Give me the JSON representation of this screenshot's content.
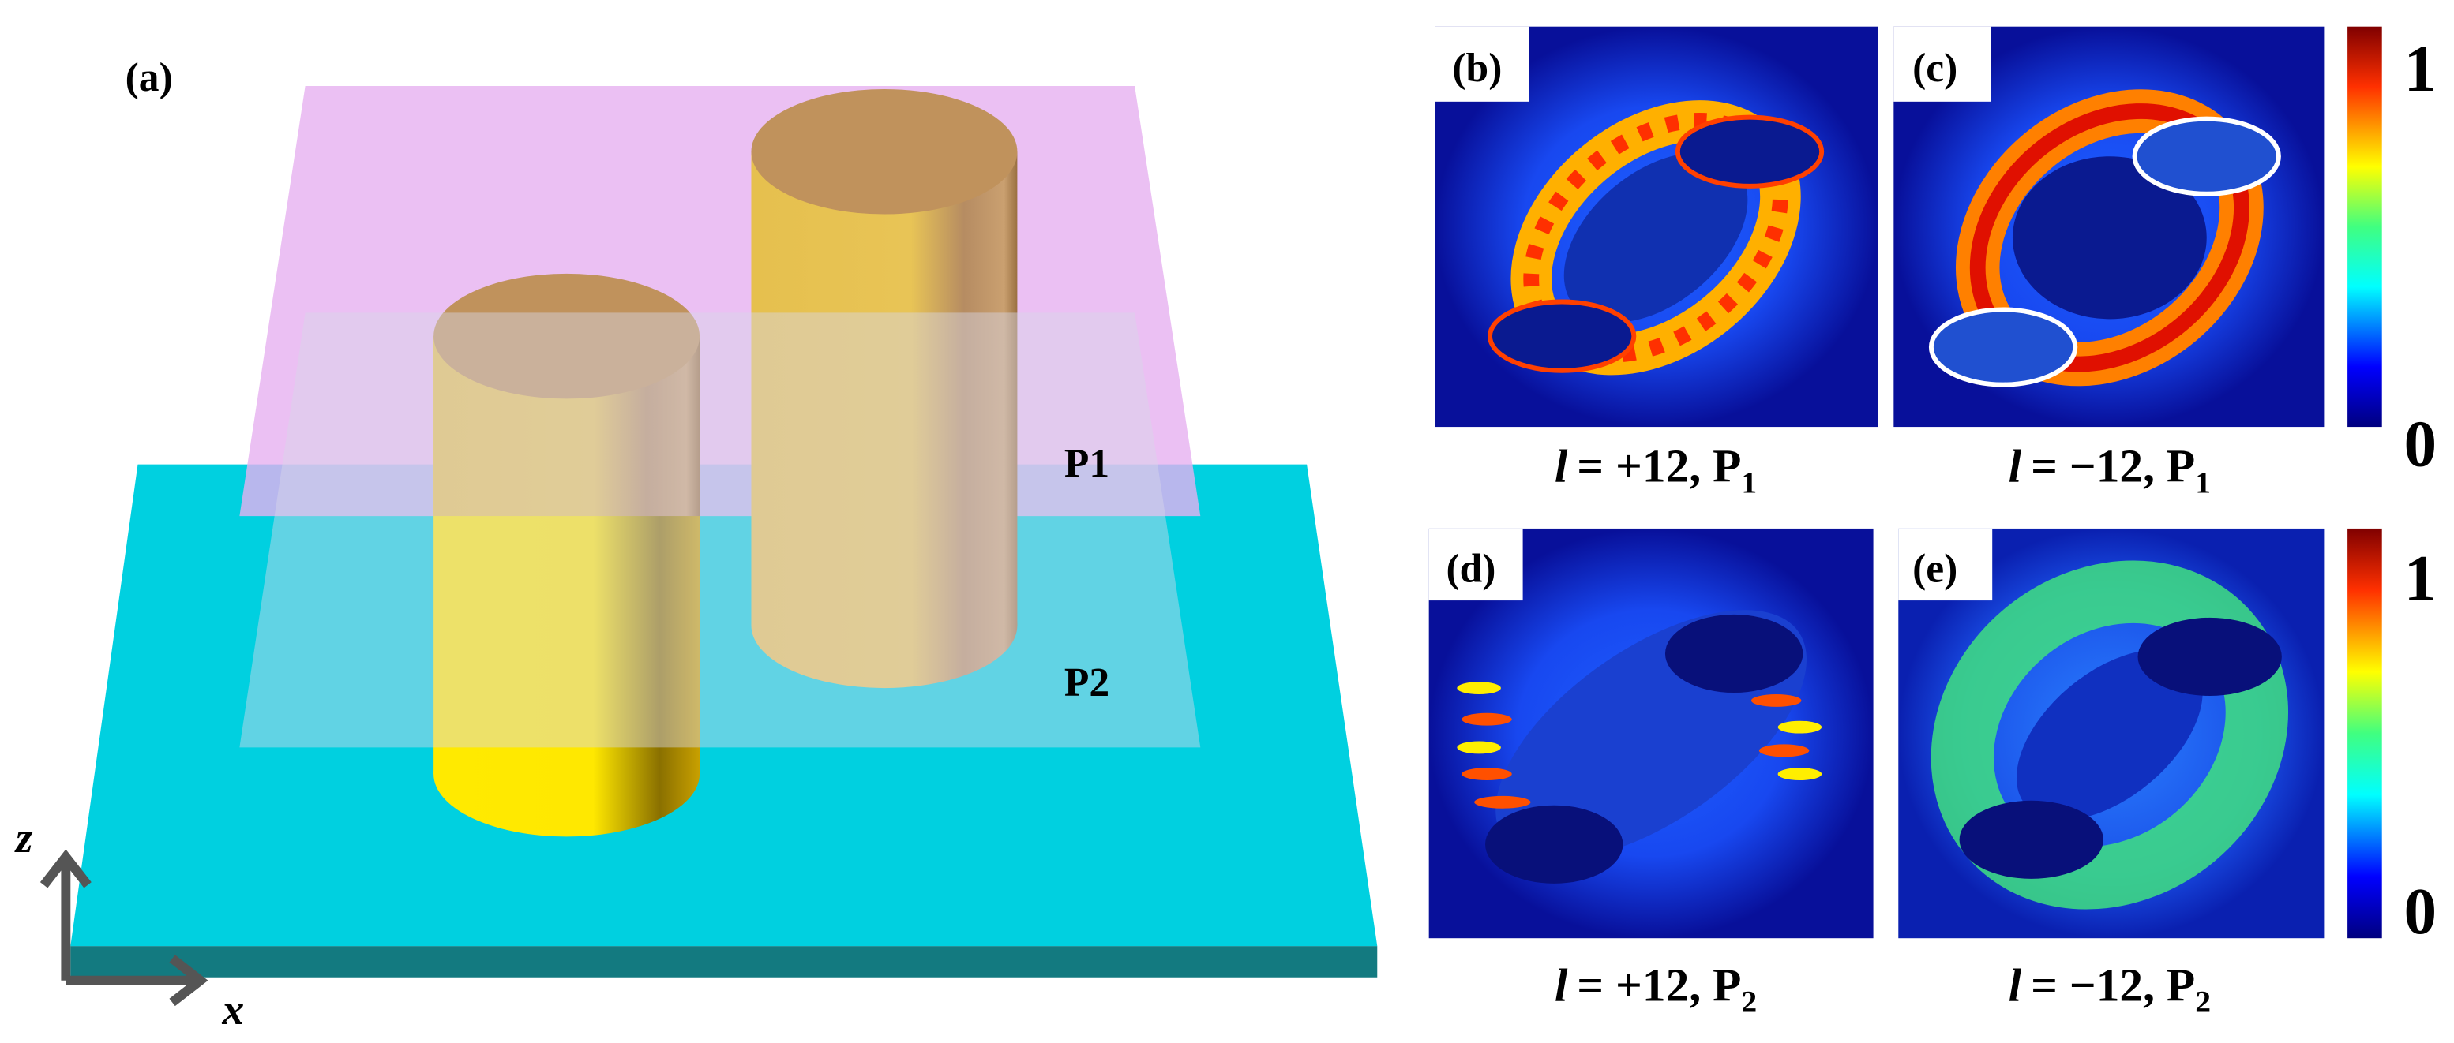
{
  "panel_a": {
    "label": "(a)",
    "plane_1": "P1",
    "plane_2": "P2",
    "axis_z": "z",
    "axis_x": "x"
  },
  "panels": [
    {
      "label": "(b)",
      "caption": [
        "l",
        "= +12, P",
        "1"
      ]
    },
    {
      "label": "(c)",
      "caption": [
        "l",
        "= −12, P",
        "1"
      ]
    },
    {
      "label": "(d)",
      "caption": [
        "l",
        "= +12, P",
        "2"
      ]
    },
    {
      "label": "(e)",
      "caption": [
        "l",
        "= −12, P",
        "2"
      ]
    }
  ],
  "colorbars": [
    {
      "max": "1",
      "min": "0"
    },
    {
      "max": "1",
      "min": "0"
    }
  ]
}
